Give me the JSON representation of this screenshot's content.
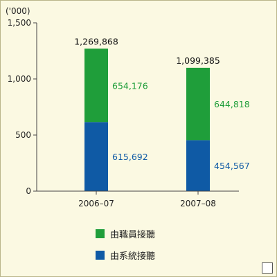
{
  "chart_data": {
    "type": "bar",
    "stacked": true,
    "unit_label": "('000)",
    "categories": [
      "2006–07",
      "2007–08"
    ],
    "series": [
      {
        "name": "由系統接聽",
        "values": [
          615692,
          454567
        ],
        "color": "#0f5aa5"
      },
      {
        "name": "由職員接聽",
        "values": [
          654176,
          644818
        ],
        "color": "#1f9e3a"
      }
    ],
    "totals": [
      1269868,
      1099385
    ],
    "data_labels": {
      "totals": [
        "1,269,868",
        "1,099,385"
      ],
      "staff": [
        "654,176",
        "644,818"
      ],
      "system": [
        "615,692",
        "454,567"
      ]
    },
    "y_ticks": [
      "0",
      "500",
      "1,000",
      "1,500"
    ],
    "ylim": [
      0,
      1500000
    ],
    "grid": false,
    "legend": [
      {
        "name": "由職員接聽",
        "color": "#1f9e3a"
      },
      {
        "name": "由系統接聽",
        "color": "#0f5aa5"
      }
    ],
    "legend_position": "bottom"
  }
}
